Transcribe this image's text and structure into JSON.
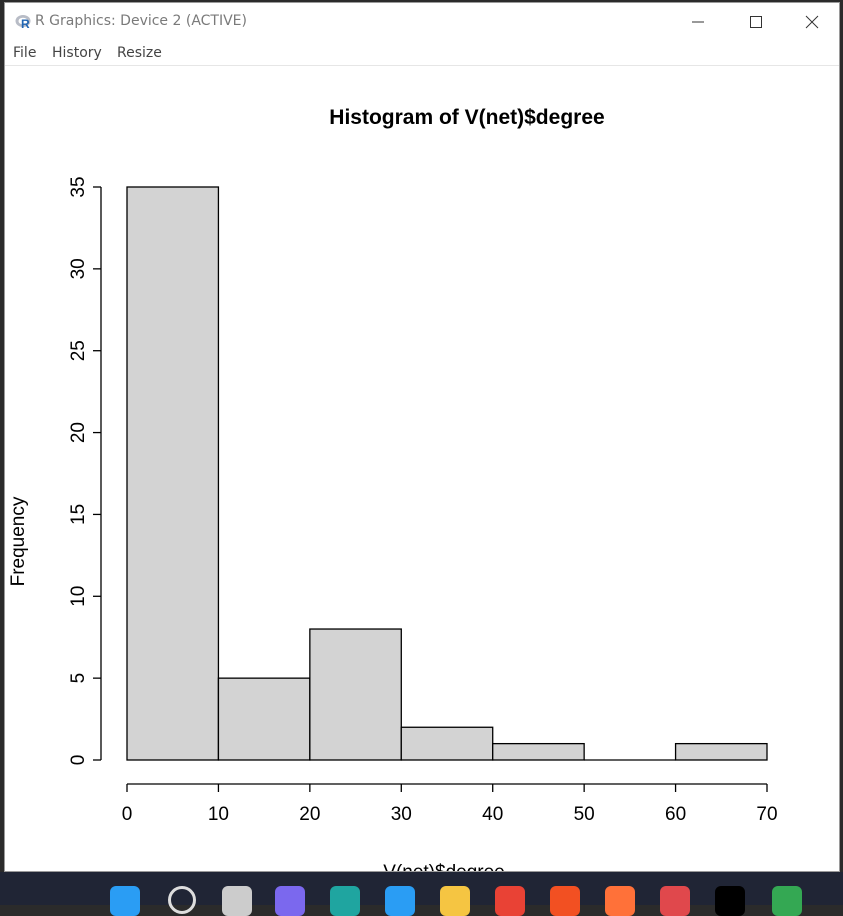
{
  "window": {
    "title": "R Graphics: Device 2 (ACTIVE)",
    "app_icon": "r-logo-icon",
    "controls": [
      "minimize-icon",
      "maximize-icon",
      "close-icon"
    ]
  },
  "menu": {
    "items": [
      {
        "label": "File"
      },
      {
        "label": "History"
      },
      {
        "label": "Resize"
      }
    ]
  },
  "chart_data": {
    "type": "bar",
    "title": "Histogram of V(net)$degree",
    "xlabel": "V(net)$degree",
    "ylabel": "Frequency",
    "bins": [
      [
        0,
        10
      ],
      [
        10,
        20
      ],
      [
        20,
        30
      ],
      [
        30,
        40
      ],
      [
        40,
        50
      ],
      [
        50,
        60
      ],
      [
        60,
        70
      ]
    ],
    "values": [
      35,
      5,
      8,
      2,
      1,
      0,
      1
    ],
    "xlim": [
      0,
      70
    ],
    "ylim": [
      0,
      35
    ],
    "xticks": [
      0,
      10,
      20,
      30,
      40,
      50,
      60,
      70
    ],
    "yticks": [
      0,
      5,
      10,
      15,
      20,
      25,
      30,
      35
    ],
    "bar_color": "#d3d3d3",
    "grid": false,
    "legend": "none"
  },
  "taskbar": {
    "icons": [
      "windows-start-icon",
      "search-icon",
      "task-view-icon",
      "teams-chat-icon",
      "edge-icon",
      "app-icon",
      "file-explorer-icon",
      "chrome-icon",
      "store-icon",
      "firefox-icon",
      "snipping-tool-icon",
      "terminal-icon",
      "chrome-profile-icon"
    ],
    "colors": [
      "#2a9df4",
      "#dddddd",
      "#cccccc",
      "#7b68ee",
      "#1fa5a0",
      "#2a9df4",
      "#f5c542",
      "#e94235",
      "#f25022",
      "#ff7139",
      "#e0484c",
      "#000000",
      "#34a853"
    ]
  }
}
